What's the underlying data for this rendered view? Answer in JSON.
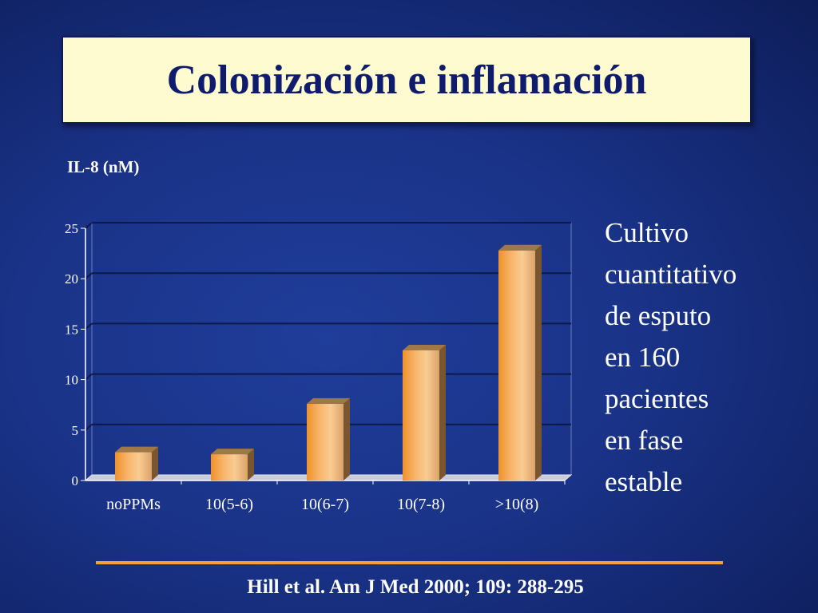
{
  "slide": {
    "title": "Colonización e inflamación",
    "side_text": [
      "Cultivo",
      "cuantitativo",
      "de esputo",
      "en 160",
      "pacientes",
      "en fase",
      "estable"
    ],
    "citation": "Hill et al. Am J Med 2000; 109: 288-295"
  },
  "chart_data": {
    "type": "bar",
    "title": "",
    "ylabel": "IL-8 (nM)",
    "xlabel": "",
    "categories": [
      "noPPMs",
      "10(5-6)",
      "10(6-7)",
      "10(7-8)",
      ">10(8)"
    ],
    "values": [
      2.8,
      2.6,
      7.6,
      12.9,
      22.8
    ],
    "ylim": [
      0,
      25
    ],
    "yticks": [
      0,
      5,
      10,
      15,
      20,
      25
    ],
    "grid": true,
    "style": "3d-bar",
    "colors": {
      "bar": "#f0a050",
      "bar_highlight": "#f8d0a0",
      "grid": "#0b1a4a",
      "axis": "#ffffff"
    }
  }
}
